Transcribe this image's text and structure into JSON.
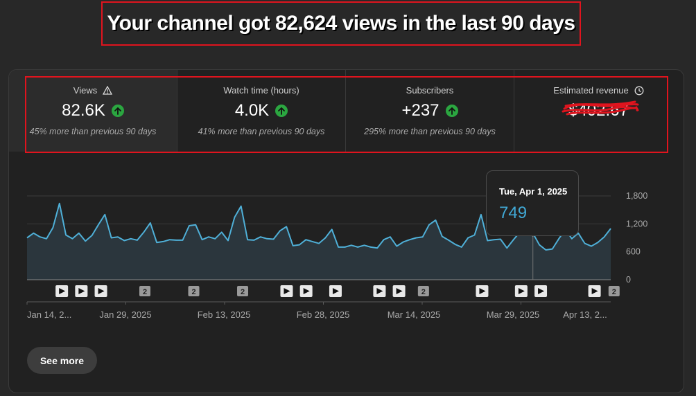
{
  "headline": "Your channel got 82,624 views in the last 90 days",
  "metrics": [
    {
      "label": "Views",
      "value": "82.6K",
      "sub": "45% more than previous 90 days",
      "icon": "warning-icon"
    },
    {
      "label": "Watch time (hours)",
      "value": "4.0K",
      "sub": "41% more than previous 90 days"
    },
    {
      "label": "Subscribers",
      "value": "+237",
      "sub": "295% more than previous 90 days"
    },
    {
      "label": "Estimated revenue",
      "value": "$402.67",
      "sub": "",
      "icon": "clock-icon",
      "redacted": true
    }
  ],
  "tooltip": {
    "date": "Tue, Apr 1, 2025",
    "value": "749"
  },
  "see_more": "See more",
  "colors": {
    "line": "#4fb0d8",
    "area": "#2b363d",
    "up": "#2ba640",
    "highlight": "#e0141e"
  },
  "chart_data": {
    "type": "area",
    "ylim": [
      0,
      1800
    ],
    "y_ticks": [
      "1,800",
      "1,200",
      "600",
      "0"
    ],
    "x_tick_labels": [
      "Jan 14, 2...",
      "Jan 29, 2025",
      "Feb 13, 2025",
      "Feb 28, 2025",
      "Mar 14, 2025",
      "Mar 29, 2025",
      "Apr 13, 2..."
    ],
    "series": [
      {
        "values": [
          900,
          1000,
          920,
          880,
          1120,
          1640,
          960,
          880,
          1000,
          830,
          950,
          1180,
          1400,
          900,
          920,
          840,
          880,
          850,
          1020,
          1220,
          800,
          820,
          860,
          850,
          850,
          1160,
          1180,
          860,
          920,
          880,
          1020,
          840,
          1340,
          1580,
          860,
          850,
          920,
          880,
          870,
          1050,
          1140,
          730,
          750,
          860,
          820,
          780,
          900,
          1080,
          700,
          700,
          740,
          700,
          740,
          700,
          680,
          860,
          920,
          720,
          810,
          860,
          900,
          920,
          1180,
          1280,
          930,
          850,
          760,
          700,
          900,
          960,
          1400,
          840,
          860,
          870,
          680,
          860,
          1020,
          1160,
          1000,
          749,
          640,
          660,
          880,
          1080,
          880,
          1000,
          780,
          720,
          800,
          920,
          1100
        ]
      }
    ],
    "markers": [
      {
        "type": "video",
        "x": 3
      },
      {
        "type": "video",
        "x": 7
      },
      {
        "type": "video",
        "x": 11
      },
      {
        "type": "group",
        "label": "2",
        "x": 20
      },
      {
        "type": "group",
        "label": "2",
        "x": 30
      },
      {
        "type": "group",
        "label": "2",
        "x": 40
      },
      {
        "type": "video",
        "x": 49
      },
      {
        "type": "video",
        "x": 53
      },
      {
        "type": "video",
        "x": 59
      },
      {
        "type": "video",
        "x": 68
      },
      {
        "type": "video",
        "x": 72
      },
      {
        "type": "group",
        "label": "2",
        "x": 77
      },
      {
        "type": "video",
        "x": 89
      },
      {
        "type": "video",
        "x": 97
      },
      {
        "type": "video",
        "x": 101
      },
      {
        "type": "video",
        "x": 112
      },
      {
        "type": "group",
        "label": "2",
        "x": 116
      }
    ]
  }
}
